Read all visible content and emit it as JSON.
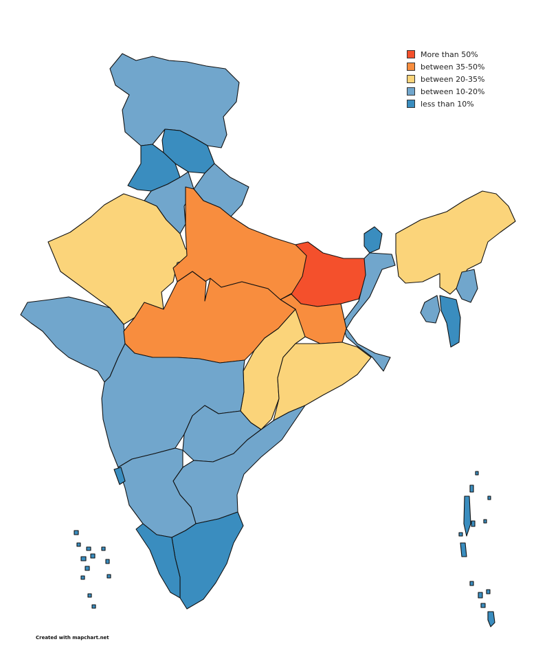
{
  "legend": {
    "items": [
      {
        "label": "More than 50%",
        "color": "#f4502c"
      },
      {
        "label": "between 35-50%",
        "color": "#f88d3e"
      },
      {
        "label": "between 20-35%",
        "color": "#fbd47a"
      },
      {
        "label": "between 10-20%",
        "color": "#71a6cc"
      },
      {
        "label": "less than 10%",
        "color": "#3a8dbf"
      }
    ]
  },
  "credit": "Created with mapchart.net",
  "regions": [
    {
      "id": "jammu-kashmir-ladakh",
      "category": 3
    },
    {
      "id": "himachal-pradesh",
      "category": 4
    },
    {
      "id": "punjab",
      "category": 4
    },
    {
      "id": "uttarakhand",
      "category": 3
    },
    {
      "id": "haryana",
      "category": 3
    },
    {
      "id": "rajasthan",
      "category": 2
    },
    {
      "id": "uttar-pradesh",
      "category": 1
    },
    {
      "id": "bihar",
      "category": 0
    },
    {
      "id": "sikkim",
      "category": 4
    },
    {
      "id": "west-bengal",
      "category": 3
    },
    {
      "id": "northeast",
      "category": 2
    },
    {
      "id": "manipur",
      "category": 3
    },
    {
      "id": "mizoram",
      "category": 4
    },
    {
      "id": "tripura",
      "category": 3
    },
    {
      "id": "jharkhand",
      "category": 1
    },
    {
      "id": "gujarat",
      "category": 3
    },
    {
      "id": "madhya-pradesh",
      "category": 1
    },
    {
      "id": "chhattisgarh",
      "category": 2
    },
    {
      "id": "odisha",
      "category": 2
    },
    {
      "id": "maharashtra",
      "category": 3
    },
    {
      "id": "telangana",
      "category": 3
    },
    {
      "id": "andhra-pradesh",
      "category": 3
    },
    {
      "id": "karnataka",
      "category": 3
    },
    {
      "id": "goa",
      "category": 4
    },
    {
      "id": "kerala",
      "category": 4
    },
    {
      "id": "tamil-nadu",
      "category": 4
    },
    {
      "id": "lakshadweep",
      "category": 4
    },
    {
      "id": "andaman-nicobar",
      "category": 4
    }
  ]
}
